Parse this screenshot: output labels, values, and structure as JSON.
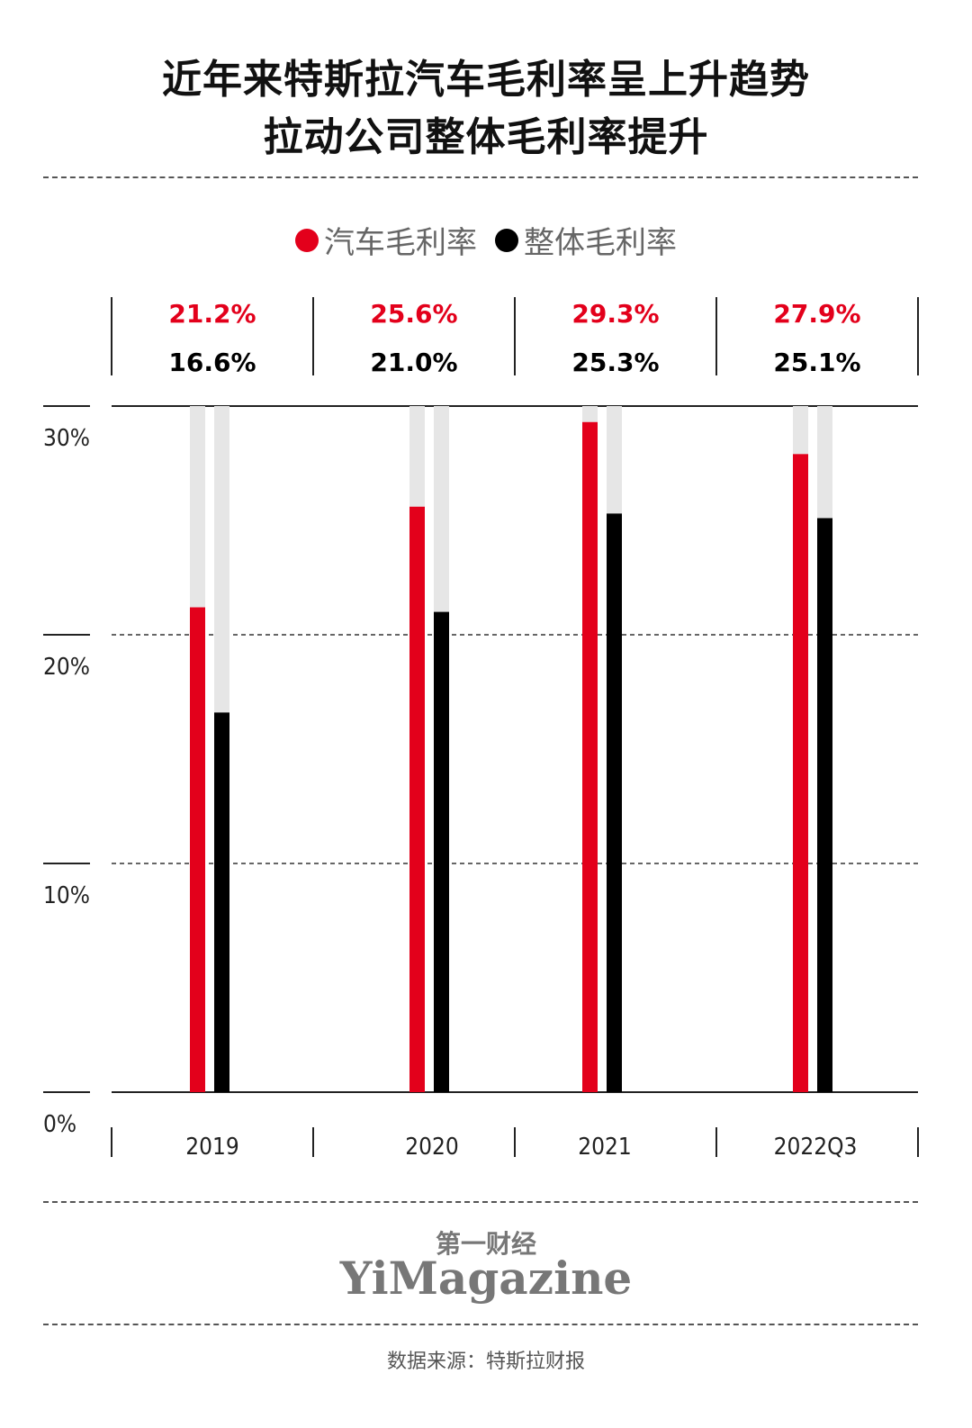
{
  "title_line1": "近年来特斯拉汽车毛利率呈上升趋势",
  "title_line2": "拉动公司整体毛利率提升",
  "legend": [
    {
      "label": "汽车毛利率",
      "color": "#e3001b"
    },
    {
      "label": "整体毛利率",
      "color": "#000000"
    }
  ],
  "chart_data": {
    "type": "bar",
    "categories": [
      "2019",
      "2020",
      "2021",
      "2022Q3"
    ],
    "series": [
      {
        "name": "汽车毛利率",
        "color": "#e3001b",
        "values": [
          21.2,
          25.6,
          29.3,
          27.9
        ],
        "labels": [
          "21.2%",
          "25.6%",
          "29.3%",
          "27.9%"
        ]
      },
      {
        "name": "整体毛利率",
        "color": "#000000",
        "values": [
          16.6,
          21.0,
          25.3,
          25.1
        ],
        "labels": [
          "16.6%",
          "21.0%",
          "25.3%",
          "25.1%"
        ]
      }
    ],
    "ylim": [
      0,
      30
    ],
    "yticks": [
      "0%",
      "10%",
      "20%",
      "30%"
    ],
    "ytick_values": [
      0,
      10,
      20,
      30
    ],
    "bar_track_color": "#e6e6e6",
    "grid": true
  },
  "logo": {
    "cn": "第一财经",
    "en": "YiMagazine"
  },
  "source": "数据来源：特斯拉财报"
}
